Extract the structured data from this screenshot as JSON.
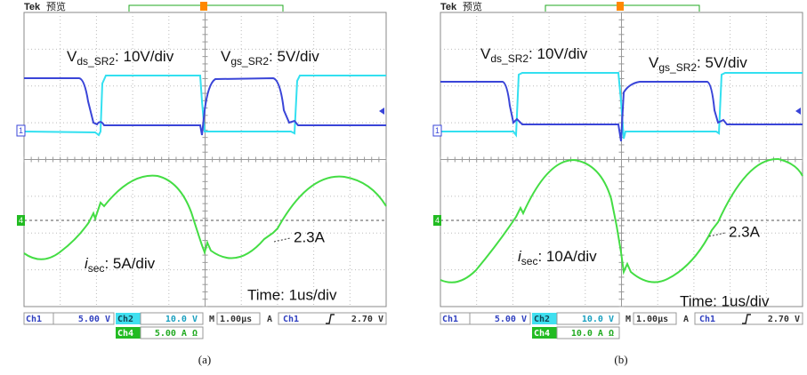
{
  "panels": [
    {
      "header": {
        "brand": "Tek",
        "mode": "预览"
      },
      "markers": {
        "ch1": "1",
        "ch4": "4"
      },
      "labels": {
        "vds": {
          "symbol": "V",
          "subscript": "ds_SR2",
          "text": ": 10V/div"
        },
        "vgs": {
          "symbol": "V",
          "subscript": "gs_SR2",
          "text": ": 5V/div"
        },
        "isec": {
          "symbol": "i",
          "subscript": "sec",
          "text": ": 5A/div"
        },
        "current": "2.3A",
        "time": "Time: 1us/div"
      },
      "readout": {
        "ch1_label": "Ch1",
        "ch1_value": "5.00 V",
        "ch2_label": "Ch2",
        "ch2_value": "10.0 V",
        "timebase_label": "M",
        "timebase_value": "1.00µs",
        "trigger_mode": "A",
        "trigger_source": "Ch1",
        "trigger_level": "2.70 V",
        "ch4_label": "Ch4",
        "ch4_value": "5.00 A Ω"
      },
      "caption": "(a)"
    },
    {
      "header": {
        "brand": "Tek",
        "mode": "预览"
      },
      "markers": {
        "ch1": "1",
        "ch4": "4"
      },
      "labels": {
        "vds": {
          "symbol": "V",
          "subscript": "ds_SR2",
          "text": ": 10V/div"
        },
        "vgs": {
          "symbol": "V",
          "subscript": "gs_SR2",
          "text": ": 5V/div"
        },
        "isec": {
          "symbol": "i",
          "subscript": "sec",
          "text": ": 10A/div"
        },
        "current": "2.3A",
        "time": "Time: 1us/div"
      },
      "readout": {
        "ch1_label": "Ch1",
        "ch1_value": "5.00 V",
        "ch2_label": "Ch2",
        "ch2_value": "10.0 V",
        "timebase_label": "M",
        "timebase_value": "1.00µs",
        "trigger_mode": "A",
        "trigger_source": "Ch1",
        "trigger_level": "2.70 V",
        "ch4_label": "Ch4",
        "ch4_value": "10.0 A Ω"
      },
      "caption": "(b)"
    }
  ]
}
